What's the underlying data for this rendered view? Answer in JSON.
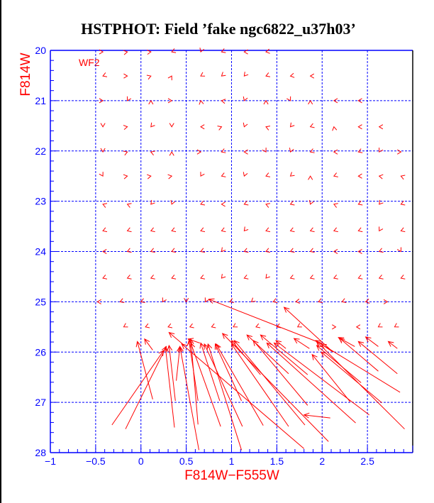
{
  "chart_data": {
    "type": "scatter",
    "subtype": "vector-field",
    "title": "HSTPHOT: Field ’fake ngc6822_u37h03’",
    "xlabel": "F814W−F555W",
    "ylabel": "F814W",
    "annotation": "WF2",
    "xlim": [
      -1,
      3
    ],
    "ylim": [
      28,
      20
    ],
    "y_inverted": true,
    "grid": true,
    "x_ticks": [
      -1,
      -0.5,
      0,
      0.5,
      1,
      1.5,
      2,
      2.5
    ],
    "x_tick_labels": [
      "−1",
      "−0.5",
      "0",
      "0.5",
      "1",
      "1.5",
      "2",
      "2.5"
    ],
    "y_ticks": [
      20,
      21,
      22,
      23,
      24,
      25,
      26,
      27,
      28
    ],
    "y_tick_labels": [
      "20",
      "21",
      "22",
      "23",
      "24",
      "25",
      "26",
      "27",
      "28"
    ],
    "x_grid": [
      -0.5,
      0,
      0.5,
      1,
      1.5,
      2,
      2.5
    ],
    "y_grid": [
      21,
      22,
      23,
      24,
      25,
      26,
      27
    ],
    "colors": {
      "axis": "#0000ff",
      "grid": "#0000ff",
      "vectors": "#ff0000",
      "frame_right": "#000000"
    },
    "marker_rows": [
      {
        "y": 20.03,
        "x": [
          -0.42,
          -0.15,
          0.11,
          0.34,
          0.66,
          0.89,
          1.14,
          1.38
        ],
        "angle": [
          0,
          10,
          5,
          200,
          250,
          200,
          180,
          190
        ]
      },
      {
        "y": 20.51,
        "x": [
          -0.42,
          -0.15,
          0.11,
          0.34,
          0.66,
          0.89,
          1.14,
          1.38,
          1.65,
          1.87
        ],
        "angle": [
          200,
          0,
          20,
          60,
          210,
          220,
          230,
          200,
          190,
          180
        ]
      },
      {
        "y": 21.0,
        "x": [
          -0.42,
          -0.15,
          0.11,
          0.34,
          0.66,
          0.89,
          1.14,
          1.38,
          1.65,
          1.87,
          2.13,
          2.4
        ],
        "angle": [
          0,
          240,
          90,
          0,
          100,
          170,
          250,
          90,
          300,
          90,
          180,
          180
        ]
      },
      {
        "y": 21.52,
        "x": [
          -0.42,
          -0.15,
          0.11,
          0.34,
          0.66,
          0.89,
          1.14,
          1.38,
          1.65,
          1.87,
          2.13,
          2.4,
          2.63
        ],
        "angle": [
          270,
          10,
          230,
          270,
          180,
          20,
          250,
          160,
          230,
          200,
          100,
          180,
          180
        ]
      },
      {
        "y": 22.02,
        "x": [
          -0.42,
          -0.15,
          0.11,
          0.34,
          0.66,
          0.89,
          1.14,
          1.38,
          1.65,
          1.87,
          2.13,
          2.4,
          2.63,
          2.87
        ],
        "angle": [
          270,
          20,
          160,
          90,
          0,
          200,
          180,
          300,
          250,
          200,
          180,
          200,
          240,
          0
        ]
      },
      {
        "y": 22.5,
        "x": [
          -0.42,
          -0.15,
          0.11,
          0.34,
          0.66,
          0.89,
          1.14,
          1.38,
          1.65,
          1.87,
          2.13,
          2.4,
          2.63,
          2.87
        ],
        "angle": [
          300,
          10,
          10,
          10,
          240,
          200,
          250,
          200,
          220,
          90,
          200,
          180,
          170,
          160
        ]
      },
      {
        "y": 23.06,
        "x": [
          -0.42,
          -0.15,
          0.11,
          0.34,
          0.66,
          0.89,
          1.14,
          1.38,
          1.65,
          1.87,
          2.13,
          2.4,
          2.63,
          2.87
        ],
        "angle": [
          160,
          160,
          230,
          250,
          200,
          180,
          200,
          160,
          200,
          250,
          160,
          200,
          230,
          200
        ]
      },
      {
        "y": 23.59,
        "x": [
          -0.42,
          -0.15,
          0.11,
          0.34,
          0.66,
          0.89,
          1.14,
          1.38,
          1.65,
          1.87,
          2.13,
          2.4,
          2.63,
          2.87
        ],
        "angle": [
          200,
          200,
          200,
          200,
          200,
          200,
          230,
          200,
          200,
          200,
          200,
          200,
          240,
          200
        ]
      },
      {
        "y": 24.0,
        "x": [
          -0.42,
          -0.15,
          0.11,
          0.34,
          0.66,
          0.89,
          1.14,
          1.38,
          1.65,
          1.87,
          2.13,
          2.4,
          2.63,
          2.87
        ],
        "angle": [
          180,
          200,
          200,
          200,
          200,
          230,
          200,
          200,
          200,
          200,
          180,
          180,
          200,
          300
        ]
      },
      {
        "y": 24.53,
        "x": [
          -0.42,
          -0.15,
          0.11,
          0.34,
          0.66,
          0.89,
          1.14,
          1.38,
          1.65,
          1.87,
          2.13,
          2.4,
          2.63,
          2.87
        ],
        "angle": [
          200,
          200,
          200,
          200,
          200,
          230,
          200,
          230,
          200,
          200,
          200,
          200,
          200,
          200
        ]
      },
      {
        "y": 25.0,
        "x": [
          -0.48,
          -0.23,
          0.0,
          0.24,
          0.5,
          0.71,
          0.98,
          1.22,
          1.46,
          1.71,
          1.96,
          2.22,
          2.48,
          2.72
        ],
        "angle": [
          180,
          200,
          200,
          240,
          270,
          240,
          200,
          220,
          200,
          190,
          200,
          200,
          190,
          0
        ]
      },
      {
        "y": 25.5,
        "x": [
          -0.19,
          0.05,
          0.3,
          0.54,
          0.78,
          1.02,
          1.27,
          1.5,
          1.73,
          2.15,
          2.38,
          2.62,
          2.8
        ],
        "angle": [
          210,
          200,
          200,
          200,
          200,
          210,
          200,
          200,
          210,
          0,
          180,
          210,
          210
        ]
      }
    ],
    "vectors": [
      [
        -0.32,
        27.45,
        0.25,
        25.97
      ],
      [
        -0.17,
        27.53,
        0.28,
        25.89
      ],
      [
        0.13,
        26.94,
        -0.04,
        25.79
      ],
      [
        0.37,
        27.5,
        0.27,
        25.9
      ],
      [
        0.38,
        26.97,
        0.31,
        25.87
      ],
      [
        0.39,
        26.57,
        0.43,
        25.89
      ],
      [
        0.64,
        27.95,
        0.43,
        25.89
      ],
      [
        0.63,
        27.44,
        0.55,
        25.74
      ],
      [
        0.63,
        26.97,
        0.53,
        25.77
      ],
      [
        0.88,
        27.48,
        0.55,
        25.82
      ],
      [
        0.87,
        26.97,
        0.66,
        25.82
      ],
      [
        1.12,
        27.48,
        0.7,
        25.84
      ],
      [
        1.11,
        27.95,
        0.74,
        25.84
      ],
      [
        1.11,
        26.97,
        0.82,
        25.84
      ],
      [
        1.35,
        27.46,
        0.83,
        25.84
      ],
      [
        1.8,
        27.92,
        0.45,
        25.84
      ],
      [
        1.63,
        27.48,
        1.0,
        25.84
      ],
      [
        1.81,
        27.45,
        1.03,
        25.77
      ],
      [
        2.07,
        27.78,
        0.9,
        25.63
      ],
      [
        1.84,
        27.06,
        1.24,
        25.77
      ],
      [
        2.09,
        27.31,
        1.8,
        27.25
      ],
      [
        2.37,
        27.41,
        1.39,
        25.82
      ],
      [
        2.52,
        27.25,
        1.47,
        25.82
      ],
      [
        2.91,
        27.53,
        1.94,
        25.79
      ],
      [
        2.66,
        27.01,
        1.99,
        26.0
      ],
      [
        2.86,
        26.8,
        1.99,
        25.84
      ],
      [
        2.62,
        26.38,
        2.19,
        25.72
      ],
      [
        2.83,
        26.43,
        2.4,
        25.79
      ],
      [
        2.43,
        26.61,
        1.94,
        25.87
      ],
      [
        2.12,
        26.0,
        1.58,
        25.11
      ],
      [
        1.94,
        25.79,
        0.75,
        24.95
      ],
      [
        2.83,
        25.93,
        2.73,
        25.79
      ],
      [
        2.62,
        25.89,
        2.48,
        25.7
      ],
      [
        2.36,
        25.89,
        2.18,
        25.71
      ],
      [
        1.86,
        25.93,
        1.69,
        25.73
      ],
      [
        1.6,
        25.93,
        1.49,
        25.77
      ],
      [
        1.32,
        26.45,
        1.0,
        25.77
      ],
      [
        1.63,
        26.43,
        1.17,
        25.66
      ],
      [
        1.84,
        26.45,
        1.32,
        25.66
      ],
      [
        2.31,
        26.99,
        1.89,
        26.05
      ],
      [
        2.12,
        26.0,
        1.93,
        25.77
      ],
      [
        0.13,
        25.96,
        0.04,
        25.74
      ],
      [
        0.48,
        25.87,
        0.31,
        25.61
      ],
      [
        0.65,
        25.82,
        0.52,
        25.74
      ]
    ]
  }
}
